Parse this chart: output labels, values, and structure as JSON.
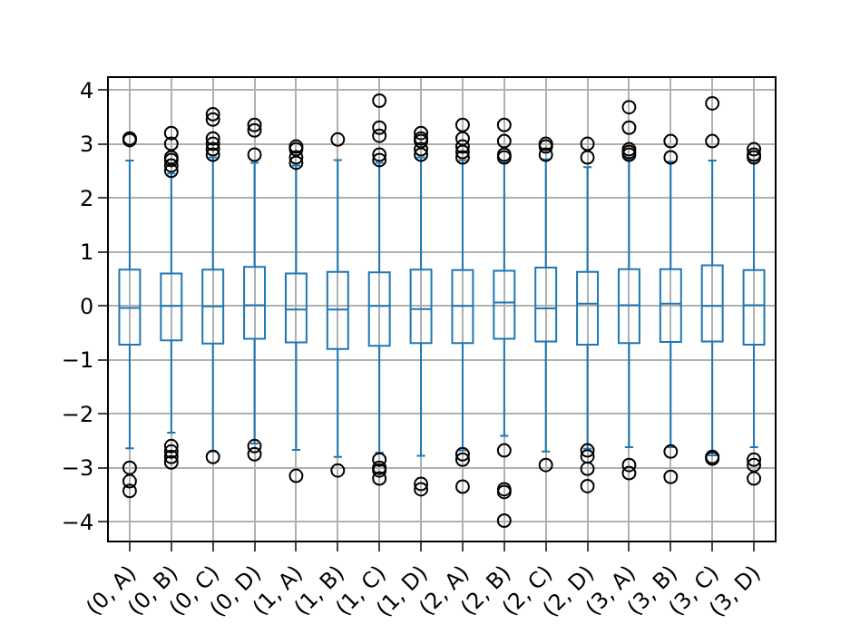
{
  "chart_data": {
    "type": "box",
    "categories": [
      "(0, A)",
      "(0, B)",
      "(0, C)",
      "(0, D)",
      "(1, A)",
      "(1, B)",
      "(1, C)",
      "(1, D)",
      "(2, A)",
      "(2, B)",
      "(2, C)",
      "(2, D)",
      "(3, A)",
      "(3, B)",
      "(3, C)",
      "(3, D)"
    ],
    "color": "#1f77b4",
    "grid": true,
    "ylim": [
      -4.35,
      4.22
    ],
    "yticks": [
      -4,
      -3,
      -2,
      -1,
      0,
      1,
      2,
      3,
      4
    ],
    "marker": "circle",
    "boxes": [
      {
        "low": -2.64,
        "q1": -0.72,
        "median": -0.04,
        "q3": 0.67,
        "high": 2.69,
        "outliers": [
          3.07,
          3.1,
          -3.0,
          -3.25,
          -3.43
        ]
      },
      {
        "low": -2.35,
        "q1": -0.64,
        "median": 0.0,
        "q3": 0.6,
        "high": 2.45,
        "outliers": [
          2.5,
          2.6,
          2.7,
          2.75,
          3.0,
          3.2,
          -2.6,
          -2.7,
          -2.8,
          -2.9
        ]
      },
      {
        "low": -2.7,
        "q1": -0.7,
        "median": -0.01,
        "q3": 0.67,
        "high": 2.75,
        "outliers": [
          2.8,
          2.9,
          3.0,
          3.1,
          3.45,
          3.55,
          -2.8
        ]
      },
      {
        "low": -2.55,
        "q1": -0.61,
        "median": 0.01,
        "q3": 0.72,
        "high": 2.65,
        "outliers": [
          2.8,
          3.25,
          3.35,
          -2.6,
          -2.75
        ]
      },
      {
        "low": -2.67,
        "q1": -0.68,
        "median": -0.07,
        "q3": 0.6,
        "high": 2.6,
        "outliers": [
          2.65,
          2.75,
          2.9,
          2.95,
          -3.15
        ]
      },
      {
        "low": -2.8,
        "q1": -0.8,
        "median": -0.07,
        "q3": 0.63,
        "high": 2.7,
        "outliers": [
          3.08,
          -3.05
        ]
      },
      {
        "low": -2.72,
        "q1": -0.74,
        "median": 0.0,
        "q3": 0.62,
        "high": 2.65,
        "outliers": [
          2.7,
          2.8,
          3.15,
          3.3,
          3.8,
          -2.85,
          -3.0,
          -3.05,
          -3.2
        ]
      },
      {
        "low": -2.78,
        "q1": -0.69,
        "median": -0.06,
        "q3": 0.67,
        "high": 2.75,
        "outliers": [
          2.8,
          2.9,
          3.05,
          3.1,
          3.2,
          -3.3,
          -3.4
        ]
      },
      {
        "low": -2.68,
        "q1": -0.69,
        "median": 0.0,
        "q3": 0.66,
        "high": 2.7,
        "outliers": [
          2.75,
          2.85,
          2.95,
          3.1,
          3.35,
          -2.75,
          -2.85,
          -3.35
        ]
      },
      {
        "low": -2.41,
        "q1": -0.61,
        "median": 0.06,
        "q3": 0.65,
        "high": 2.65,
        "outliers": [
          2.75,
          2.8,
          3.05,
          3.35,
          -2.68,
          -3.4,
          -3.45,
          -3.98
        ]
      },
      {
        "low": -2.7,
        "q1": -0.66,
        "median": -0.05,
        "q3": 0.71,
        "high": 2.71,
        "outliers": [
          2.8,
          2.95,
          3.0,
          -2.95
        ]
      },
      {
        "low": -2.65,
        "q1": -0.72,
        "median": 0.04,
        "q3": 0.63,
        "high": 2.57,
        "outliers": [
          2.75,
          3.0,
          -2.68,
          -2.79,
          -3.02,
          -3.34
        ]
      },
      {
        "low": -2.62,
        "q1": -0.69,
        "median": 0.01,
        "q3": 0.68,
        "high": 2.72,
        "outliers": [
          2.8,
          2.85,
          2.9,
          3.3,
          3.68,
          -2.95,
          -3.1
        ]
      },
      {
        "low": -2.62,
        "q1": -0.67,
        "median": 0.04,
        "q3": 0.68,
        "high": 2.67,
        "outliers": [
          2.75,
          3.05,
          -2.7,
          -3.17
        ]
      },
      {
        "low": -2.77,
        "q1": -0.66,
        "median": 0.0,
        "q3": 0.75,
        "high": 2.69,
        "outliers": [
          3.05,
          3.75,
          -2.8,
          -2.83
        ]
      },
      {
        "low": -2.62,
        "q1": -0.72,
        "median": 0.01,
        "q3": 0.66,
        "high": 2.7,
        "outliers": [
          2.75,
          2.8,
          2.9,
          -2.85,
          -2.95,
          -3.2
        ]
      }
    ]
  }
}
